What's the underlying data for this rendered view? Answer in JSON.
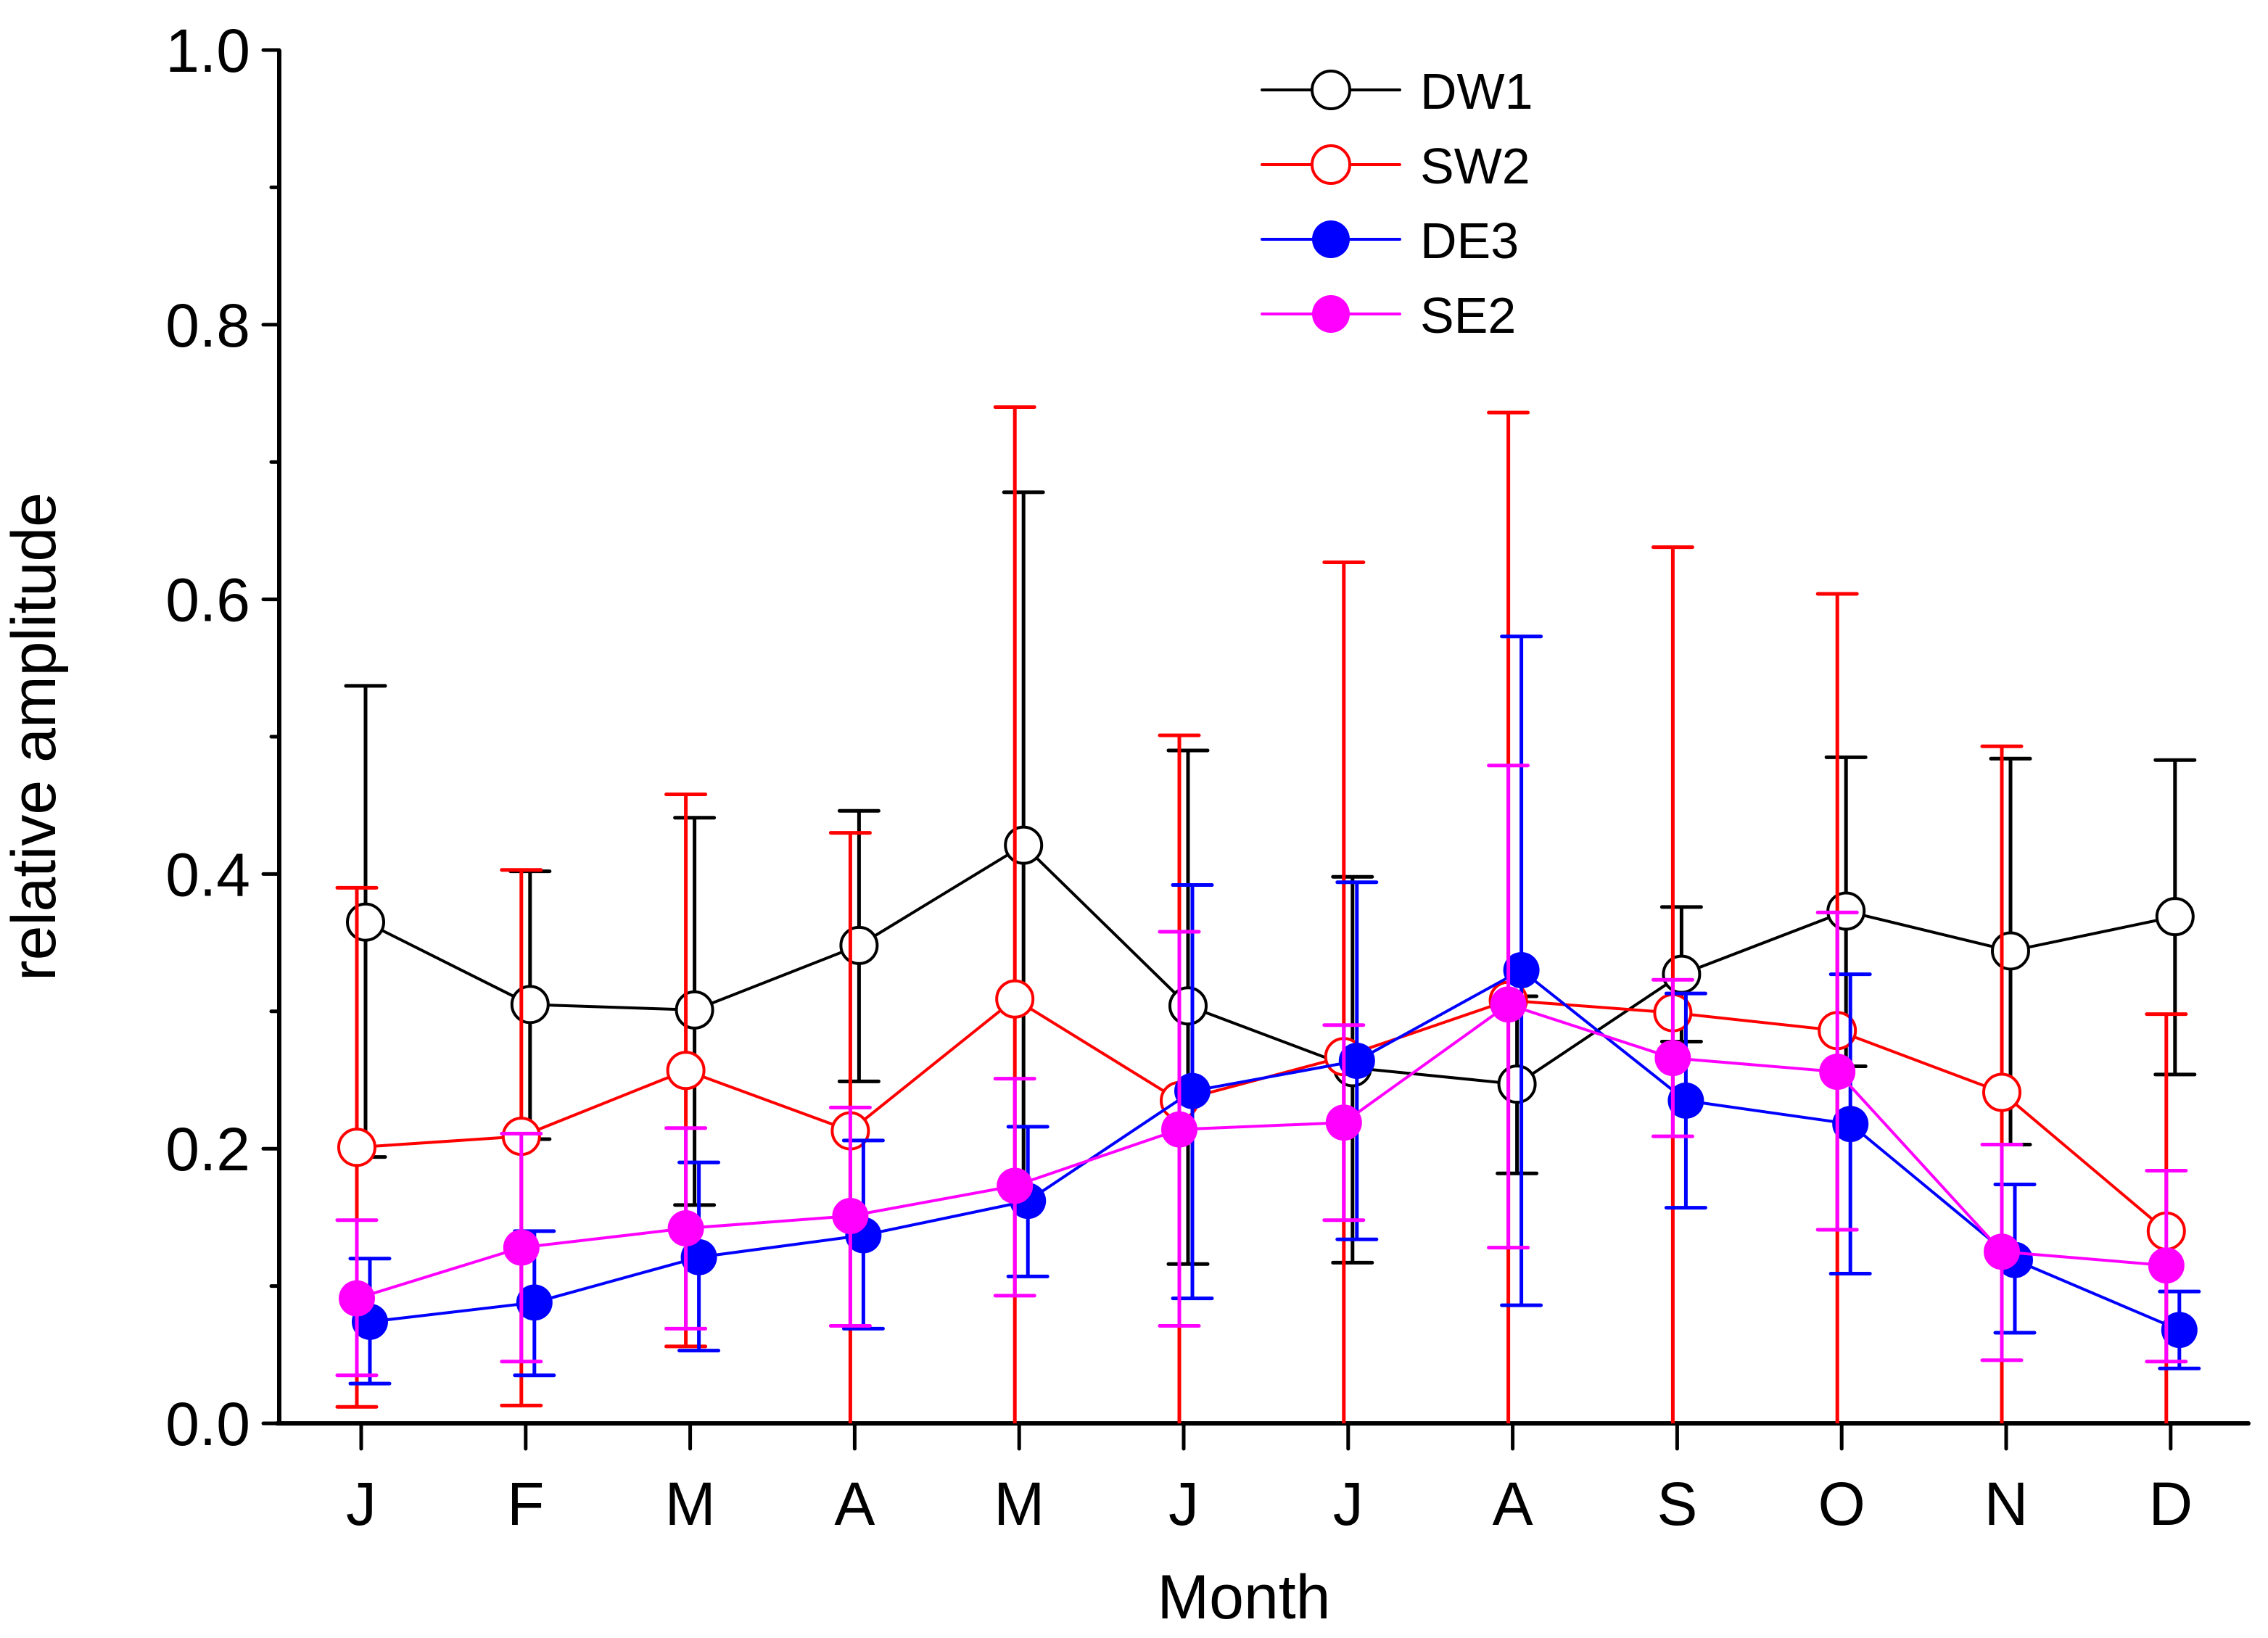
{
  "chart_data": {
    "type": "line",
    "title": "",
    "xlabel": "Month",
    "ylabel": "relative amplitude",
    "categories": [
      "J",
      "F",
      "M",
      "A",
      "M",
      "J",
      "J",
      "A",
      "S",
      "O",
      "N",
      "D"
    ],
    "ylim": [
      0.0,
      1.0
    ],
    "yticks": [
      "0.0",
      "0.2",
      "0.4",
      "0.6",
      "0.8",
      "1.0"
    ],
    "yticks_values": [
      0.0,
      0.2,
      0.4,
      0.6,
      0.8,
      1.0
    ],
    "minor_ytick_step": 0.1,
    "grid": false,
    "legend_position": "top-center",
    "error_bars": true,
    "series": [
      {
        "name": "DW1",
        "color": "#000000",
        "marker": "open-circle",
        "values": [
          0.365,
          0.305,
          0.301,
          0.348,
          0.421,
          0.304,
          0.259,
          0.247,
          0.327,
          0.373,
          0.344,
          0.369
        ],
        "err_low": [
          0.194,
          0.207,
          0.159,
          0.249,
          0.164,
          0.116,
          0.117,
          0.182,
          0.278,
          0.26,
          0.203,
          0.254
        ],
        "err_high": [
          0.537,
          0.402,
          0.441,
          0.446,
          0.678,
          0.49,
          0.398,
          0.311,
          0.376,
          0.485,
          0.484,
          0.483
        ]
      },
      {
        "name": "SW2",
        "color": "#ff0000",
        "marker": "open-circle",
        "values": [
          0.201,
          0.209,
          0.257,
          0.213,
          0.309,
          0.235,
          0.267,
          0.308,
          0.299,
          0.286,
          0.241,
          0.14
        ],
        "err_low": [
          0.012,
          0.013,
          0.056,
          0.0,
          0.0,
          0.0,
          0.0,
          0.0,
          0.0,
          0.0,
          0.0,
          0.0
        ],
        "err_high": [
          0.39,
          0.403,
          0.458,
          0.43,
          0.74,
          0.501,
          0.627,
          0.736,
          0.638,
          0.604,
          0.493,
          0.298
        ]
      },
      {
        "name": "DE3",
        "color": "#0000ff",
        "marker": "filled-circle",
        "values": [
          0.074,
          0.088,
          0.121,
          0.137,
          0.162,
          0.242,
          0.264,
          0.33,
          0.235,
          0.218,
          0.119,
          0.068
        ],
        "err_low": [
          0.029,
          0.035,
          0.053,
          0.069,
          0.107,
          0.091,
          0.134,
          0.086,
          0.157,
          0.109,
          0.066,
          0.04
        ],
        "err_high": [
          0.12,
          0.14,
          0.19,
          0.206,
          0.216,
          0.392,
          0.394,
          0.573,
          0.313,
          0.327,
          0.174,
          0.096
        ]
      },
      {
        "name": "SE2",
        "color": "#ff00ff",
        "marker": "filled-circle",
        "values": [
          0.091,
          0.128,
          0.142,
          0.151,
          0.173,
          0.214,
          0.219,
          0.305,
          0.266,
          0.256,
          0.125,
          0.115
        ],
        "err_low": [
          0.035,
          0.045,
          0.069,
          0.071,
          0.093,
          0.071,
          0.148,
          0.128,
          0.209,
          0.141,
          0.046,
          0.045
        ],
        "err_high": [
          0.148,
          0.211,
          0.215,
          0.23,
          0.251,
          0.358,
          0.29,
          0.479,
          0.323,
          0.372,
          0.203,
          0.184
        ]
      }
    ]
  }
}
